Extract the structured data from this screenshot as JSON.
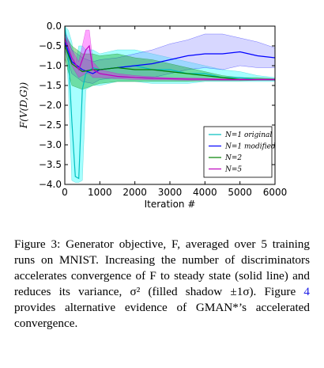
{
  "chart_data": {
    "type": "line",
    "title": "",
    "xlabel": "Iteration #",
    "ylabel": "F(V(D,G))",
    "xlim": [
      0,
      6000
    ],
    "ylim": [
      -4.0,
      0.0
    ],
    "xticks": [
      0,
      1000,
      2000,
      3000,
      4000,
      5000,
      6000
    ],
    "xtick_labels": [
      "0",
      "1000",
      "2000",
      "3000",
      "4000",
      "5000",
      "6000"
    ],
    "yticks": [
      0.0,
      -0.5,
      -1.0,
      -1.5,
      -2.0,
      -2.5,
      -3.0,
      -3.5,
      -4.0
    ],
    "ytick_labels": [
      "0.0",
      "−0.5",
      "−1.0",
      "−1.5",
      "−2.0",
      "−2.5",
      "−3.0",
      "−3.5",
      "−4.0"
    ],
    "grid": false,
    "legend_position": "lower-right",
    "series": [
      {
        "name": "N=1 original",
        "color": "#00bfbf",
        "fill": "#00ffff",
        "x": [
          0,
          100,
          200,
          300,
          400,
          500,
          600,
          800,
          1000,
          1500,
          2000,
          2500,
          3000,
          3500,
          4000,
          4500,
          5000,
          5500,
          6000
        ],
        "y": [
          0.0,
          -0.7,
          -2.4,
          -3.8,
          -3.85,
          -1.6,
          -1.2,
          -1.05,
          -1.1,
          -1.05,
          -1.0,
          -1.1,
          -1.1,
          -1.2,
          -1.2,
          -1.3,
          -1.3,
          -1.35,
          -1.35
        ],
        "upper": [
          0.0,
          -0.1,
          -0.4,
          -1.0,
          -0.5,
          -0.5,
          -0.6,
          -0.6,
          -0.7,
          -0.6,
          -0.6,
          -0.7,
          -0.8,
          -0.9,
          -1.0,
          -1.1,
          -1.15,
          -1.25,
          -1.3
        ],
        "lower": [
          0.0,
          -1.5,
          -3.9,
          -3.95,
          -3.95,
          -3.9,
          -1.6,
          -1.5,
          -1.5,
          -1.4,
          -1.4,
          -1.45,
          -1.45,
          -1.45,
          -1.4,
          -1.4,
          -1.4,
          -1.4,
          -1.4
        ]
      },
      {
        "name": "N=1 modified",
        "color": "#0000ff",
        "fill": "#8c8cff",
        "x": [
          0,
          200,
          500,
          800,
          1000,
          1500,
          2000,
          2500,
          3000,
          3500,
          4000,
          4500,
          5000,
          5500,
          6000
        ],
        "y": [
          -0.4,
          -0.9,
          -1.1,
          -1.2,
          -1.1,
          -1.05,
          -1.0,
          -0.95,
          -0.85,
          -0.75,
          -0.7,
          -0.7,
          -0.65,
          -0.75,
          -0.8
        ],
        "upper": [
          -0.2,
          -0.6,
          -0.8,
          -0.9,
          -0.85,
          -0.8,
          -0.7,
          -0.6,
          -0.45,
          -0.35,
          -0.2,
          -0.2,
          -0.3,
          -0.4,
          -0.55
        ],
        "lower": [
          -0.6,
          -1.2,
          -1.4,
          -1.45,
          -1.35,
          -1.3,
          -1.3,
          -1.3,
          -1.2,
          -1.1,
          -1.05,
          -1.1,
          -1.0,
          -1.05,
          -1.05
        ]
      },
      {
        "name": "N=2",
        "color": "#008000",
        "fill": "#00a000",
        "x": [
          0,
          200,
          500,
          800,
          1000,
          1500,
          2000,
          2500,
          3000,
          3500,
          4000,
          4500,
          5000,
          5500,
          6000
        ],
        "y": [
          -0.5,
          -0.95,
          -1.15,
          -1.1,
          -1.1,
          -1.05,
          -1.1,
          -1.1,
          -1.15,
          -1.2,
          -1.25,
          -1.3,
          -1.35,
          -1.35,
          -1.35
        ],
        "upper": [
          -0.2,
          -0.5,
          -0.7,
          -0.7,
          -0.75,
          -0.7,
          -0.8,
          -0.85,
          -0.95,
          -1.05,
          -1.15,
          -1.25,
          -1.3,
          -1.3,
          -1.33
        ],
        "lower": [
          -0.8,
          -1.5,
          -1.6,
          -1.5,
          -1.45,
          -1.4,
          -1.4,
          -1.4,
          -1.4,
          -1.4,
          -1.38,
          -1.38,
          -1.38,
          -1.37,
          -1.37
        ]
      },
      {
        "name": "N=5",
        "color": "#bf00bf",
        "fill": "#ff00ff",
        "x": [
          0,
          200,
          400,
          600,
          700,
          800,
          1000,
          1500,
          2000,
          2500,
          3000,
          3500,
          4000,
          4500,
          5000,
          5500,
          6000
        ],
        "y": [
          -0.3,
          -0.8,
          -1.1,
          -0.6,
          -0.5,
          -1.1,
          -1.2,
          -1.27,
          -1.3,
          -1.32,
          -1.33,
          -1.34,
          -1.34,
          -1.35,
          -1.35,
          -1.35,
          -1.35
        ],
        "upper": [
          -0.1,
          -0.6,
          -0.9,
          -0.1,
          -0.1,
          -0.9,
          -1.1,
          -1.2,
          -1.25,
          -1.28,
          -1.3,
          -1.31,
          -1.32,
          -1.33,
          -1.33,
          -1.33,
          -1.33
        ],
        "lower": [
          -0.5,
          -1.0,
          -1.3,
          -1.2,
          -1.2,
          -1.3,
          -1.3,
          -1.33,
          -1.35,
          -1.36,
          -1.36,
          -1.37,
          -1.37,
          -1.37,
          -1.37,
          -1.37,
          -1.37
        ]
      }
    ]
  },
  "caption": {
    "prefix": "Figure 3: Generator objective, F, averaged over 5 training runs on MNIST. Increasing the number of discriminators accelerates convergence of F to steady state (solid line) and reduces its variance, σ² (filled shadow ±1σ). Figure ",
    "ref": "4",
    "suffix": " provides alternative evidence of GMAN*’s accelerated convergence."
  }
}
